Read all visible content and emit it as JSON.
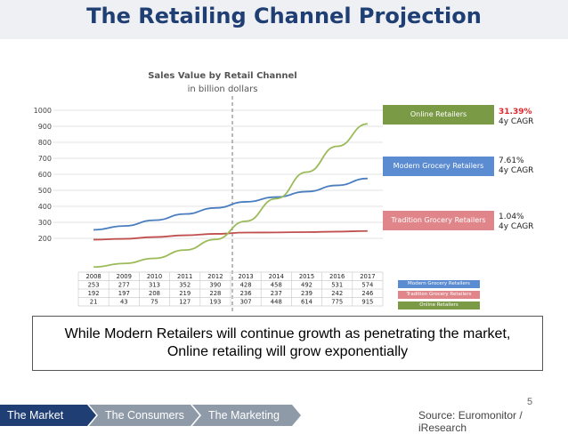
{
  "title": "The Retailing Channel Projection",
  "chart": {
    "title": "Sales Value by Retail Channel",
    "subtitle": "in billion dollars"
  },
  "legend_boxes": [
    {
      "label": "Online Retailers",
      "color": "#7b9a46",
      "pct": "31.39%",
      "cagr": "4y CAGR",
      "pct_color": "#e0262b"
    },
    {
      "label": "Modern Grocery Retailers",
      "color": "#5b8bd0",
      "pct": "7.61%",
      "cagr": "4y CAGR",
      "pct_color": "#222222"
    },
    {
      "label": "Tradition Grocery Retailers",
      "color": "#e0868a",
      "pct": "1.04%",
      "cagr": "4y CAGR",
      "pct_color": "#222222"
    }
  ],
  "table_legend": [
    {
      "label": "Modern Grocery Retailers",
      "color": "#5b8bd0"
    },
    {
      "label": "Tradition Grocery Retailers",
      "color": "#e0868a"
    },
    {
      "label": "Online Retailers",
      "color": "#7b9a46"
    }
  ],
  "chart_data": {
    "type": "line",
    "x": [
      "2008",
      "2009",
      "2010",
      "2011",
      "2012",
      "2013",
      "2014",
      "2015",
      "2016",
      "2017"
    ],
    "series": [
      {
        "name": "Modern Grocery Retailers",
        "color": "#4a7ebf",
        "values": [
          253,
          277,
          313,
          352,
          390,
          428,
          458,
          492,
          531,
          574
        ]
      },
      {
        "name": "Tradition Grocery Retailers",
        "color": "#c0504d",
        "values": [
          192,
          197,
          208,
          219,
          228,
          236,
          237,
          239,
          242,
          246
        ]
      },
      {
        "name": "Online Retailers",
        "color": "#9bbb59",
        "values": [
          21,
          43,
          75,
          127,
          193,
          307,
          448,
          614,
          775,
          915
        ]
      }
    ],
    "y_ticks": [
      "200",
      "300",
      "400",
      "500",
      "600",
      "700",
      "800",
      "900",
      "1000"
    ],
    "ylim": [
      0,
      1000
    ],
    "grid": true
  },
  "callout": {
    "line1": "While Modern Retailers will continue growth as penetrating the market,",
    "line2": "Online retailing will grow exponentially"
  },
  "page_number": "5",
  "source": "Source: Euromonitor / iResearch",
  "nav": [
    {
      "label": "The Market",
      "color": "#1f3f74"
    },
    {
      "label": "The Consumers",
      "color": "#8f9aa8"
    },
    {
      "label": "The Marketing",
      "color": "#8f9aa8"
    }
  ]
}
